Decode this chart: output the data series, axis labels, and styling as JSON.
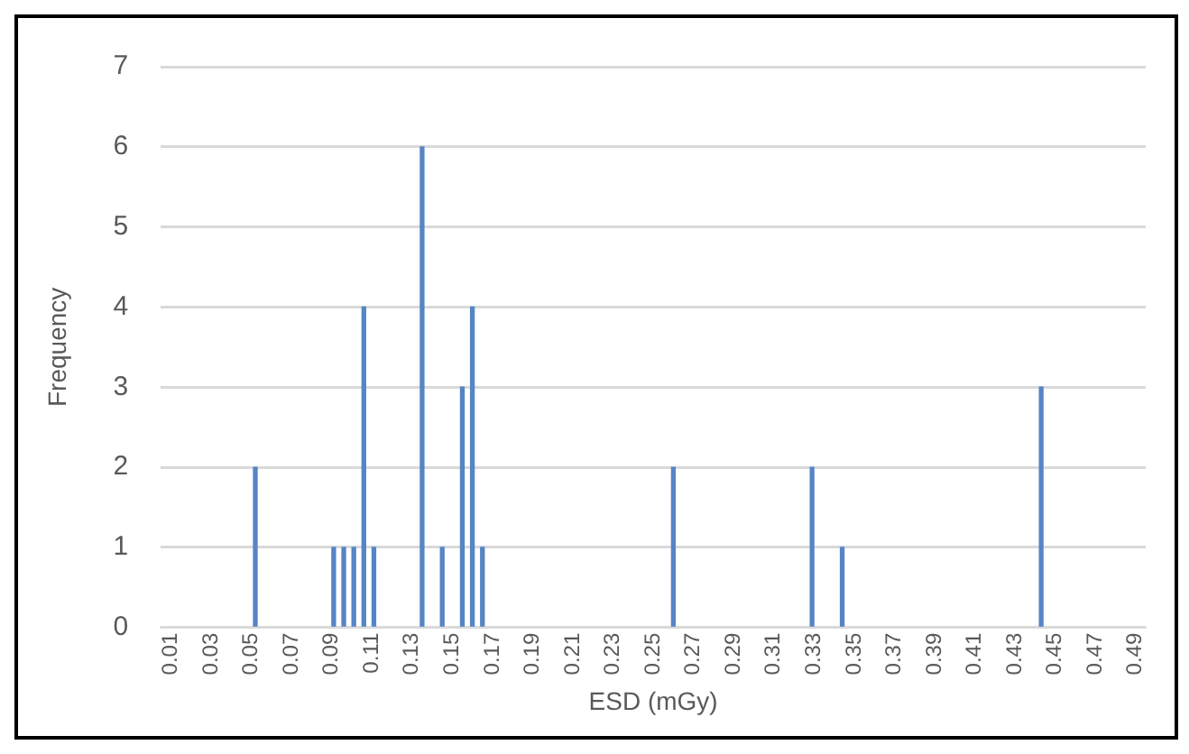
{
  "chart_data": {
    "type": "bar",
    "xlabel": "ESD (mGy)",
    "ylabel": "Frequency",
    "x": [
      0.052,
      0.091,
      0.096,
      0.101,
      0.106,
      0.111,
      0.135,
      0.145,
      0.155,
      0.16,
      0.165,
      0.26,
      0.329,
      0.344,
      0.443
    ],
    "values": [
      2,
      1,
      1,
      1,
      4,
      1,
      6,
      1,
      3,
      4,
      1,
      2,
      2,
      1,
      3
    ],
    "color": "#5585c5",
    "xlim": [
      0.005,
      0.495
    ],
    "xticks": [
      0.01,
      0.03,
      0.05,
      0.07,
      0.09,
      0.11,
      0.13,
      0.15,
      0.17,
      0.19,
      0.21,
      0.23,
      0.25,
      0.27,
      0.29,
      0.31,
      0.33,
      0.35,
      0.37,
      0.39,
      0.41,
      0.43,
      0.45,
      0.47,
      0.49
    ],
    "ylim": [
      0,
      7
    ],
    "yticks": [
      0,
      1,
      2,
      3,
      4,
      5,
      6,
      7
    ],
    "grid": "y",
    "legend": false
  }
}
